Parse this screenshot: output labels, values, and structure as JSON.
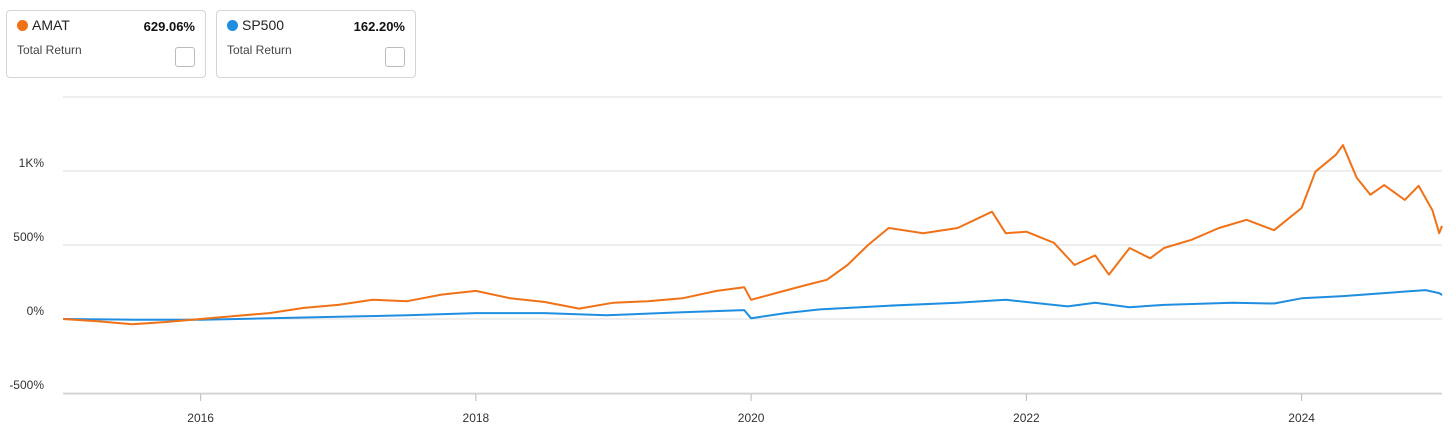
{
  "chart_data": {
    "type": "line",
    "cards": [
      {
        "name": "AMAT",
        "value": "629.06%",
        "label": "Total Return"
      },
      {
        "name": "SP500",
        "value": "162.20%",
        "label": "Total Return"
      }
    ],
    "xlim": [
      2015,
      2025.02
    ],
    "xticks": [
      2016,
      2018,
      2020,
      2022,
      2024
    ],
    "ylim": [
      -500,
      1500
    ],
    "yticks": [
      {
        "value": -500,
        "label": "-500%"
      },
      {
        "value": 0,
        "label": "0%"
      },
      {
        "value": 500,
        "label": "500%"
      },
      {
        "value": 1000,
        "label": "1K%"
      },
      {
        "value": 1500,
        "label": ""
      }
    ],
    "grid": true,
    "series": [
      {
        "name": "AMAT",
        "color": "#f07116",
        "x": [
          2015.0,
          2015.25,
          2015.5,
          2015.75,
          2016.0,
          2016.25,
          2016.5,
          2016.75,
          2017.0,
          2017.25,
          2017.5,
          2017.75,
          2018.0,
          2018.25,
          2018.5,
          2018.75,
          2019.0,
          2019.25,
          2019.5,
          2019.75,
          2019.95,
          2020.0,
          2020.2,
          2020.4,
          2020.55,
          2020.7,
          2020.85,
          2021.0,
          2021.25,
          2021.5,
          2021.75,
          2021.85,
          2022.0,
          2022.2,
          2022.35,
          2022.5,
          2022.6,
          2022.75,
          2022.9,
          2023.0,
          2023.2,
          2023.4,
          2023.6,
          2023.8,
          2024.0,
          2024.1,
          2024.25,
          2024.3,
          2024.4,
          2024.5,
          2024.6,
          2024.75,
          2024.85,
          2024.95,
          2025.0,
          2025.02
        ],
        "values": [
          0,
          -15,
          -35,
          -20,
          0,
          20,
          40,
          75,
          95,
          130,
          120,
          165,
          190,
          140,
          115,
          70,
          110,
          120,
          140,
          190,
          215,
          130,
          180,
          230,
          265,
          365,
          500,
          615,
          580,
          615,
          725,
          580,
          590,
          515,
          365,
          430,
          300,
          480,
          410,
          480,
          535,
          615,
          670,
          600,
          750,
          995,
          1110,
          1175,
          955,
          840,
          905,
          805,
          900,
          735,
          580,
          629
        ]
      },
      {
        "name": "SP500",
        "color": "#1f8ee0",
        "x": [
          2015.0,
          2015.5,
          2016.0,
          2016.5,
          2017.0,
          2017.5,
          2018.0,
          2018.5,
          2018.95,
          2019.5,
          2019.95,
          2020.0,
          2020.25,
          2020.5,
          2021.0,
          2021.5,
          2021.85,
          2022.0,
          2022.3,
          2022.5,
          2022.75,
          2023.0,
          2023.5,
          2023.8,
          2024.0,
          2024.3,
          2024.6,
          2024.9,
          2025.0,
          2025.02
        ],
        "values": [
          0,
          -5,
          -5,
          5,
          15,
          25,
          40,
          40,
          25,
          45,
          60,
          5,
          40,
          65,
          90,
          110,
          130,
          115,
          85,
          110,
          80,
          95,
          110,
          105,
          140,
          155,
          175,
          195,
          175,
          162
        ]
      }
    ]
  }
}
